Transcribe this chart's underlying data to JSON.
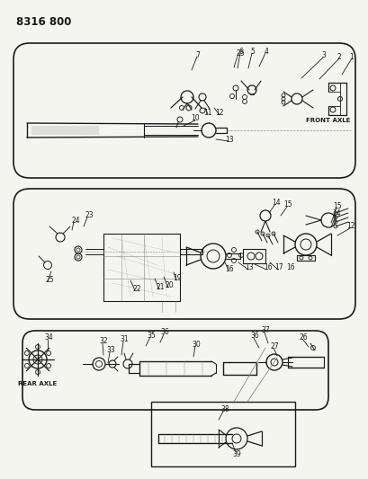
{
  "title": "8316 800",
  "bg_color": "#f5f5f0",
  "line_color": "#1a1a1a",
  "text_color": "#1a1a1a",
  "fig_width": 4.1,
  "fig_height": 5.33,
  "dpi": 100,
  "gray": "#888888",
  "light_gray": "#aaaaaa",
  "front_axle": "FRONT AXLE",
  "rear_axle": "REAR AXLE"
}
